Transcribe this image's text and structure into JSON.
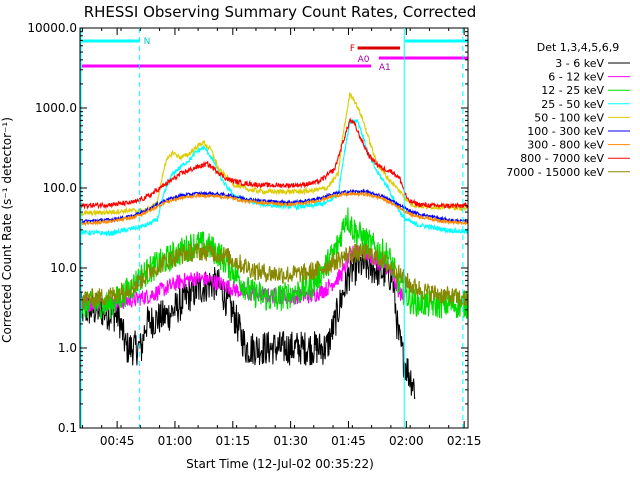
{
  "chart_data": {
    "type": "line",
    "title": "RHESSI Observing Summary Count Rates, Corrected",
    "xlabel": "Start Time (12-Jul-02 00:35:22)",
    "ylabel": "Corrected Count Rate (s⁻¹ detector⁻¹)",
    "yscale": "log",
    "ylim": [
      0.1,
      10000
    ],
    "xlim_minutes": [
      0,
      100.63
    ],
    "y_ticks": [
      {
        "value": 0.1,
        "label": "0.1"
      },
      {
        "value": 1,
        "label": "1.0"
      },
      {
        "value": 10,
        "label": "10.0"
      },
      {
        "value": 100,
        "label": "100.0"
      },
      {
        "value": 1000,
        "label": "1000.0"
      },
      {
        "value": 10000,
        "label": "10000.0"
      }
    ],
    "x_ticks": [
      {
        "minutes": 9.63,
        "label": "00:45"
      },
      {
        "minutes": 24.63,
        "label": "01:00"
      },
      {
        "minutes": 39.63,
        "label": "01:15"
      },
      {
        "minutes": 54.63,
        "label": "01:30"
      },
      {
        "minutes": 69.63,
        "label": "01:45"
      },
      {
        "minutes": 84.63,
        "label": "02:00"
      },
      {
        "minutes": 99.63,
        "label": "02:15"
      }
    ],
    "legend_title": "Det 1,3,4,5,6,9",
    "series": [
      {
        "name": "3 - 6 keV",
        "color": "#000000",
        "noise": 0.22,
        "points": [
          [
            0,
            3
          ],
          [
            5,
            3
          ],
          [
            10,
            2.5
          ],
          [
            12,
            1
          ],
          [
            16,
            1
          ],
          [
            17,
            2
          ],
          [
            20,
            2.3
          ],
          [
            23,
            2.6
          ],
          [
            26,
            3.5
          ],
          [
            28,
            4.5
          ],
          [
            31,
            5.5
          ],
          [
            34,
            6.5
          ],
          [
            36,
            6
          ],
          [
            38,
            4
          ],
          [
            40,
            2.5
          ],
          [
            43,
            1
          ],
          [
            60,
            1
          ],
          [
            64,
            1
          ],
          [
            66,
            2
          ],
          [
            68,
            4.5
          ],
          [
            70,
            9
          ],
          [
            73,
            11
          ],
          [
            76,
            10
          ],
          [
            78,
            9
          ],
          [
            81,
            8
          ],
          [
            82.5,
            1.5
          ],
          [
            84,
            0.7
          ],
          [
            86,
            0.4
          ],
          [
            87,
            0.3
          ]
        ]
      },
      {
        "name": "6 - 12 keV",
        "color": "#ff00ff",
        "noise": 0.1,
        "points": [
          [
            0,
            3.5
          ],
          [
            10,
            3.7
          ],
          [
            14,
            4
          ],
          [
            18,
            4.5
          ],
          [
            22,
            5.5
          ],
          [
            26,
            6.8
          ],
          [
            30,
            7.5
          ],
          [
            34,
            7
          ],
          [
            38,
            6
          ],
          [
            42,
            5
          ],
          [
            48,
            4.5
          ],
          [
            54,
            4.4
          ],
          [
            60,
            4.5
          ],
          [
            64,
            5.5
          ],
          [
            68,
            8.5
          ],
          [
            70,
            14
          ],
          [
            72,
            18
          ],
          [
            74,
            16
          ],
          [
            77,
            12
          ],
          [
            80,
            10
          ],
          [
            82,
            6
          ],
          [
            84,
            4
          ]
        ]
      },
      {
        "name": "12 - 25 keV",
        "color": "#00dd00",
        "noise": 0.18,
        "points": [
          [
            0,
            3.3
          ],
          [
            5,
            3.5
          ],
          [
            8,
            3.5
          ],
          [
            12,
            5
          ],
          [
            16,
            8
          ],
          [
            20,
            11
          ],
          [
            24,
            14
          ],
          [
            28,
            18
          ],
          [
            30,
            20
          ],
          [
            33,
            19
          ],
          [
            36,
            15
          ],
          [
            40,
            9
          ],
          [
            44,
            5
          ],
          [
            50,
            4
          ],
          [
            56,
            5
          ],
          [
            60,
            6
          ],
          [
            64,
            11
          ],
          [
            67,
            20
          ],
          [
            69,
            45
          ],
          [
            71,
            30
          ],
          [
            74,
            22
          ],
          [
            77,
            17
          ],
          [
            80,
            14
          ],
          [
            83,
            6
          ],
          [
            86,
            3.8
          ],
          [
            91,
            3.5
          ],
          [
            95,
            3.5
          ],
          [
            100.6,
            3.5
          ]
        ]
      },
      {
        "name": "25 - 50 keV",
        "color": "#00ffff",
        "noise": 0.03,
        "points": [
          [
            0,
            28
          ],
          [
            8,
            27
          ],
          [
            12,
            30
          ],
          [
            17,
            34
          ],
          [
            20,
            40
          ],
          [
            22,
            90
          ],
          [
            24,
            150
          ],
          [
            27,
            200
          ],
          [
            29,
            240
          ],
          [
            30,
            280
          ],
          [
            31,
            300
          ],
          [
            32,
            320
          ],
          [
            33,
            290
          ],
          [
            35,
            200
          ],
          [
            37,
            120
          ],
          [
            40,
            80
          ],
          [
            44,
            68
          ],
          [
            48,
            62
          ],
          [
            52,
            60
          ],
          [
            56,
            58
          ],
          [
            60,
            60
          ],
          [
            64,
            65
          ],
          [
            67,
            85
          ],
          [
            68,
            190
          ],
          [
            70,
            680
          ],
          [
            72,
            700
          ],
          [
            73,
            500
          ],
          [
            75,
            250
          ],
          [
            77,
            160
          ],
          [
            80,
            100
          ],
          [
            82,
            60
          ],
          [
            84,
            42
          ],
          [
            87,
            35
          ],
          [
            90,
            33
          ],
          [
            95,
            30
          ],
          [
            100.6,
            28
          ]
        ]
      },
      {
        "name": "50 - 100 keV",
        "color": "#ddcc00",
        "noise": 0.03,
        "points": [
          [
            0,
            48
          ],
          [
            8,
            50
          ],
          [
            12,
            52
          ],
          [
            17,
            52
          ],
          [
            20,
            65
          ],
          [
            22,
            200
          ],
          [
            24,
            280
          ],
          [
            26,
            240
          ],
          [
            28,
            260
          ],
          [
            30,
            320
          ],
          [
            32,
            370
          ],
          [
            34,
            300
          ],
          [
            36,
            170
          ],
          [
            40,
            110
          ],
          [
            44,
            95
          ],
          [
            48,
            90
          ],
          [
            52,
            90
          ],
          [
            56,
            90
          ],
          [
            60,
            92
          ],
          [
            64,
            100
          ],
          [
            67,
            150
          ],
          [
            68,
            400
          ],
          [
            70,
            1500
          ],
          [
            71,
            1300
          ],
          [
            73,
            800
          ],
          [
            75,
            400
          ],
          [
            77,
            200
          ],
          [
            80,
            130
          ],
          [
            83,
            90
          ],
          [
            86,
            62
          ],
          [
            90,
            58
          ],
          [
            95,
            58
          ],
          [
            100.6,
            55
          ]
        ]
      },
      {
        "name": "100 - 300 keV",
        "color": "#0000ff",
        "noise": 0.02,
        "points": [
          [
            0,
            38
          ],
          [
            8,
            40
          ],
          [
            14,
            45
          ],
          [
            18,
            55
          ],
          [
            22,
            70
          ],
          [
            26,
            80
          ],
          [
            30,
            85
          ],
          [
            34,
            85
          ],
          [
            38,
            82
          ],
          [
            42,
            75
          ],
          [
            46,
            70
          ],
          [
            50,
            68
          ],
          [
            54,
            66
          ],
          [
            58,
            68
          ],
          [
            62,
            74
          ],
          [
            66,
            85
          ],
          [
            70,
            90
          ],
          [
            74,
            90
          ],
          [
            78,
            80
          ],
          [
            82,
            65
          ],
          [
            86,
            50
          ],
          [
            90,
            45
          ],
          [
            95,
            40
          ],
          [
            100.6,
            38
          ]
        ]
      },
      {
        "name": "300 - 800 keV",
        "color": "#ff8800",
        "noise": 0.02,
        "points": [
          [
            0,
            36
          ],
          [
            8,
            38
          ],
          [
            14,
            43
          ],
          [
            18,
            52
          ],
          [
            22,
            66
          ],
          [
            26,
            75
          ],
          [
            30,
            80
          ],
          [
            34,
            80
          ],
          [
            38,
            77
          ],
          [
            42,
            70
          ],
          [
            46,
            66
          ],
          [
            50,
            64
          ],
          [
            54,
            62
          ],
          [
            58,
            64
          ],
          [
            62,
            70
          ],
          [
            66,
            80
          ],
          [
            70,
            84
          ],
          [
            74,
            84
          ],
          [
            78,
            75
          ],
          [
            82,
            60
          ],
          [
            86,
            46
          ],
          [
            90,
            42
          ],
          [
            95,
            38
          ],
          [
            100.6,
            36
          ]
        ]
      },
      {
        "name": "800 - 7000 keV",
        "color": "#ff0000",
        "noise": 0.03,
        "points": [
          [
            0,
            60
          ],
          [
            8,
            62
          ],
          [
            14,
            66
          ],
          [
            18,
            80
          ],
          [
            22,
            110
          ],
          [
            26,
            150
          ],
          [
            30,
            180
          ],
          [
            33,
            200
          ],
          [
            35,
            170
          ],
          [
            38,
            130
          ],
          [
            42,
            115
          ],
          [
            46,
            110
          ],
          [
            50,
            108
          ],
          [
            54,
            108
          ],
          [
            58,
            110
          ],
          [
            62,
            120
          ],
          [
            66,
            170
          ],
          [
            68,
            350
          ],
          [
            70,
            700
          ],
          [
            71,
            650
          ],
          [
            73,
            400
          ],
          [
            75,
            250
          ],
          [
            78,
            180
          ],
          [
            81,
            160
          ],
          [
            83,
            130
          ],
          [
            85,
            70
          ],
          [
            88,
            62
          ],
          [
            92,
            60
          ],
          [
            100.6,
            60
          ]
        ]
      },
      {
        "name": "7000 - 15000 keV",
        "color": "#888800",
        "noise": 0.12,
        "points": [
          [
            0,
            4
          ],
          [
            8,
            4.5
          ],
          [
            14,
            6
          ],
          [
            18,
            9
          ],
          [
            22,
            12
          ],
          [
            26,
            14.5
          ],
          [
            30,
            16
          ],
          [
            34,
            16
          ],
          [
            38,
            14
          ],
          [
            42,
            11
          ],
          [
            46,
            9
          ],
          [
            50,
            8.5
          ],
          [
            54,
            8.3
          ],
          [
            58,
            8.5
          ],
          [
            62,
            9.5
          ],
          [
            66,
            12
          ],
          [
            70,
            15
          ],
          [
            74,
            15.5
          ],
          [
            78,
            13
          ],
          [
            82,
            9
          ],
          [
            86,
            6
          ],
          [
            90,
            5
          ],
          [
            95,
            4.5
          ],
          [
            100.6,
            4
          ]
        ]
      }
    ],
    "annotations": {
      "eclipse_label": "N",
      "flag_labels": [
        "F",
        "A0",
        "A1"
      ]
    }
  }
}
